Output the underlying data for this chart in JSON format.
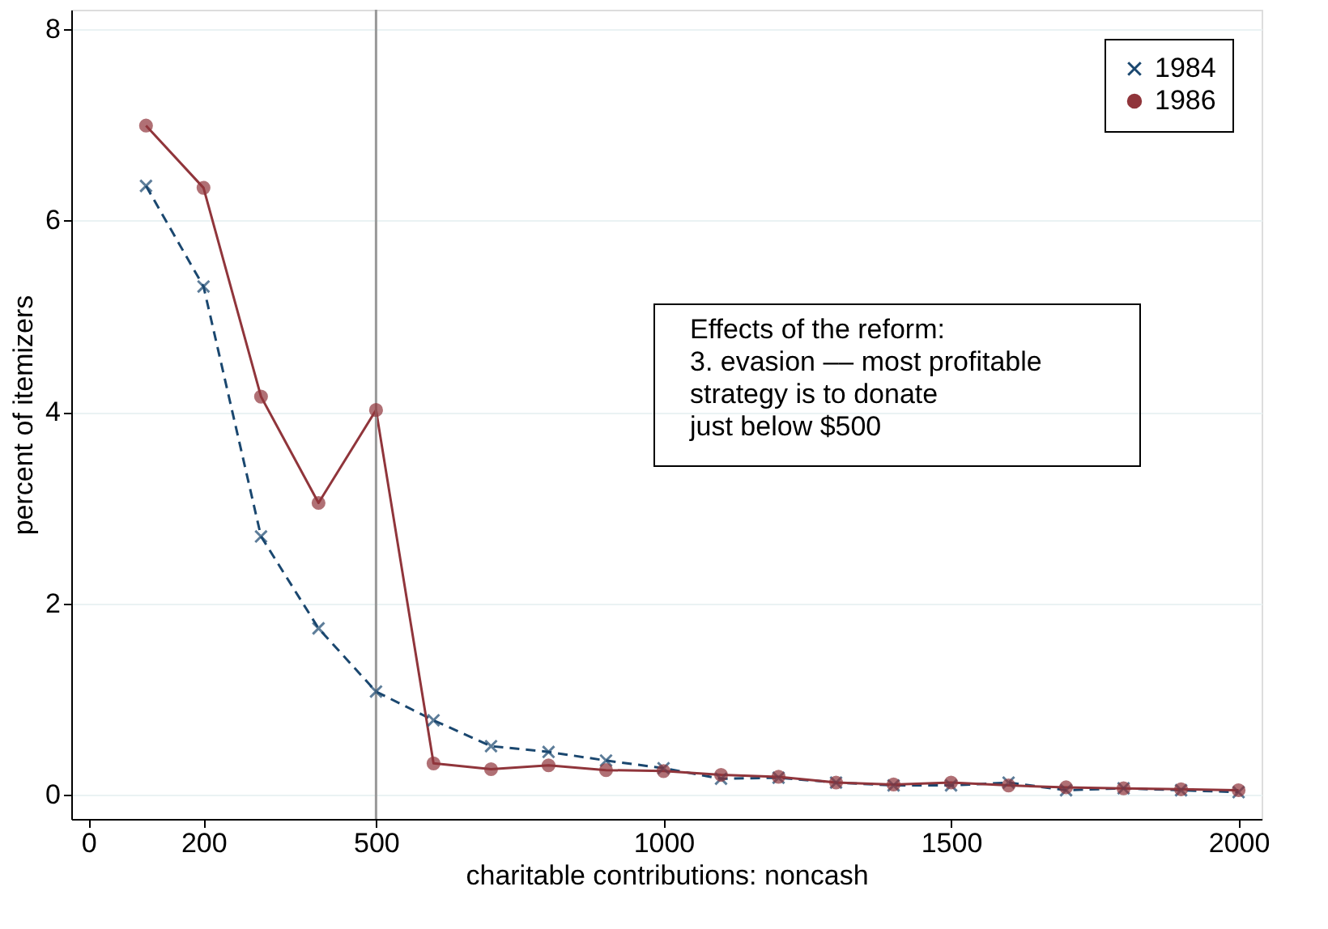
{
  "chart_data": {
    "type": "line",
    "xlabel": "charitable contributions: noncash",
    "ylabel": "percent of itemizers",
    "x": [
      100,
      200,
      300,
      400,
      500,
      600,
      700,
      800,
      900,
      1000,
      1100,
      1200,
      1300,
      1400,
      1500,
      1600,
      1700,
      1800,
      1900,
      2000
    ],
    "series": [
      {
        "name": "1984",
        "color": "#1a476f",
        "marker": "cross",
        "line_style": "dashed",
        "values": [
          6.36,
          5.31,
          2.7,
          1.74,
          1.08,
          0.78,
          0.51,
          0.45,
          0.36,
          0.28,
          0.17,
          0.18,
          0.13,
          0.1,
          0.1,
          0.13,
          0.05,
          0.07,
          0.05,
          0.03
        ]
      },
      {
        "name": "1986",
        "color": "#90353b",
        "marker": "circle",
        "line_style": "solid",
        "values": [
          6.99,
          6.34,
          4.16,
          3.05,
          4.02,
          0.33,
          0.27,
          0.31,
          0.26,
          0.25,
          0.21,
          0.19,
          0.13,
          0.11,
          0.13,
          0.1,
          0.08,
          0.07,
          0.06,
          0.05
        ]
      }
    ],
    "xlim": [
      -30,
      2040
    ],
    "ylim": [
      -0.25,
      8.2
    ],
    "xticks": [
      0,
      200,
      500,
      1000,
      1500,
      2000
    ],
    "yticks": [
      0,
      2,
      4,
      6,
      8
    ],
    "ref_lines": [
      {
        "axis": "x",
        "value": 500,
        "color": "#999999"
      }
    ],
    "annotations": [
      "Effects of the reform:\n3. evasion –– most profitable\n      strategy is to donate\n      just below $500"
    ],
    "legend": "top right",
    "grid": "y"
  }
}
